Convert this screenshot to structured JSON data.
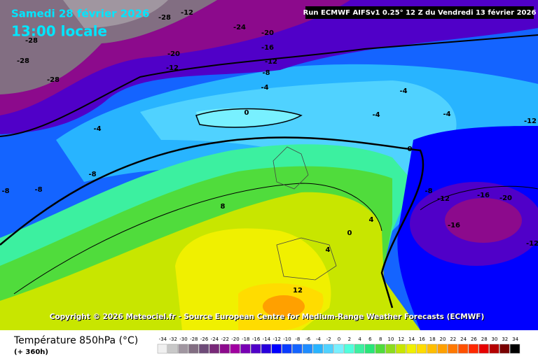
{
  "header": {
    "date": "Samedi 28 février 2026",
    "time": "13:00 locale",
    "run": "Run ECMWF AIFSv1 0.25° 12 Z du Vendredi 13 février 2026"
  },
  "copyright": "Copyright © 2026 Meteociel.fr - Source European Centre for Medium-Range Weather Forecasts (ECMWF)",
  "contour_labels": [
    -12,
    -28,
    -24,
    -20,
    -28,
    -16,
    -20,
    -12,
    -28,
    -12,
    -8,
    -28,
    -4,
    -4,
    0,
    -4,
    -4,
    -4,
    -12,
    0,
    -8,
    -8,
    -8,
    -8,
    -12,
    -16,
    -20,
    8,
    4,
    -16,
    0,
    -12,
    4,
    12
  ],
  "legend": {
    "title": "Température 850hPa (°C)",
    "subtitle": "(+ 360h)",
    "scale": [
      -34,
      -32,
      -30,
      -28,
      -26,
      -24,
      -22,
      -20,
      -18,
      -16,
      -14,
      -12,
      -10,
      -8,
      -6,
      -4,
      -2,
      0,
      2,
      4,
      6,
      8,
      10,
      12,
      14,
      16,
      18,
      20,
      22,
      24,
      26,
      28,
      30,
      32,
      34
    ],
    "colors": [
      "#f0f0f0",
      "#c8c8c8",
      "#a096a0",
      "#826e82",
      "#6e4b78",
      "#782878",
      "#8c0a8c",
      "#a000a0",
      "#7800b4",
      "#5000c8",
      "#2800dc",
      "#0000ff",
      "#0a3cff",
      "#1464ff",
      "#1e8cff",
      "#28b4ff",
      "#50d2ff",
      "#78f0ff",
      "#50ffdc",
      "#3cf0a0",
      "#28e678",
      "#50dc3c",
      "#8cdc1e",
      "#c8e600",
      "#f0f000",
      "#ffdc00",
      "#ffbe00",
      "#ffa000",
      "#ff7800",
      "#ff5000",
      "#ff2800",
      "#e60000",
      "#b40000",
      "#780000",
      "#000000"
    ]
  }
}
